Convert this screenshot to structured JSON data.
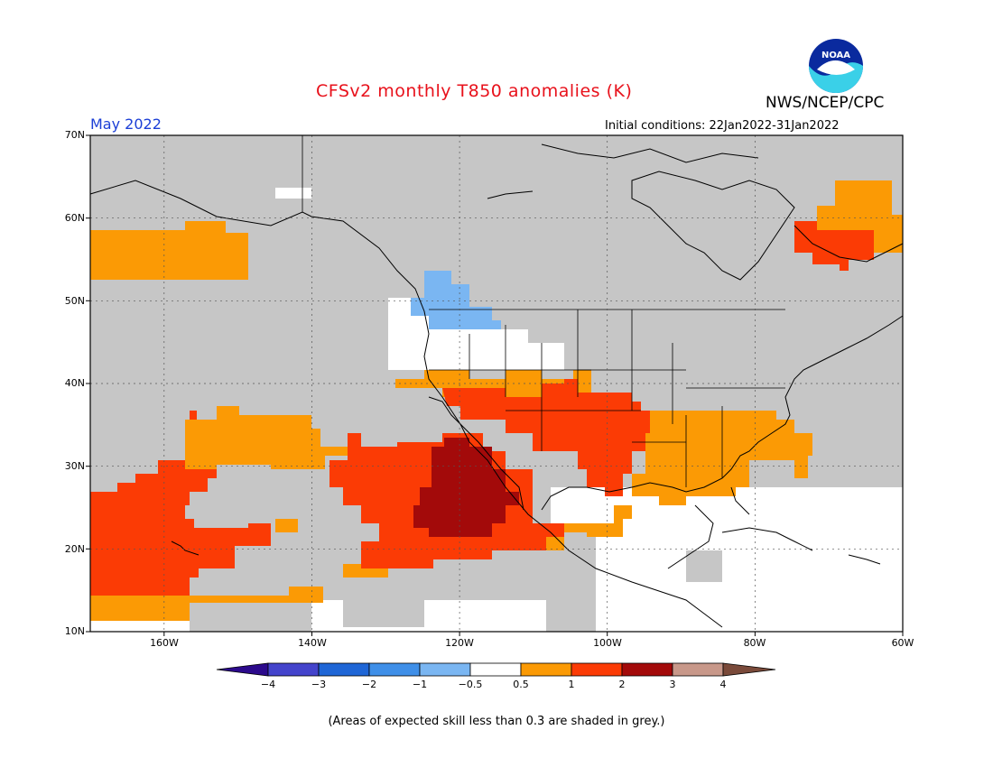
{
  "title": "CFSv2 monthly T850 anomalies (K)",
  "agency": "NWS/NCEP/CPC",
  "month": "May 2022",
  "initial_conditions": "Initial conditions: 22Jan2022-31Jan2022",
  "logo_text": "NOAA",
  "lat_labels": [
    "70N",
    "60N",
    "50N",
    "40N",
    "30N",
    "20N",
    "10N"
  ],
  "lon_labels": [
    "160W",
    "140W",
    "120W",
    "100W",
    "80W",
    "60W"
  ],
  "colorbar": {
    "labels": [
      "−4",
      "−3",
      "−2",
      "−1",
      "−0.5",
      "0.5",
      "1",
      "2",
      "3",
      "4"
    ],
    "colors": [
      "#2c0a8c",
      "#4444cc",
      "#1f66d6",
      "#3f8fe8",
      "#7ab6f2",
      "#ffffff",
      "#fb9a05",
      "#fb3b05",
      "#a30a0a",
      "#c8988a",
      "#7a4a3a"
    ]
  },
  "footnote": "(Areas of expected skill less than 0.3 are shaded in grey.)",
  "map_colors": {
    "grey": "#c6c6c6",
    "land_outline": "#000000",
    "orange": "#fb9a05",
    "red": "#fb3b05",
    "darkred": "#a30a0a",
    "lightblue": "#7ab6f2",
    "white": "#ffffff"
  }
}
